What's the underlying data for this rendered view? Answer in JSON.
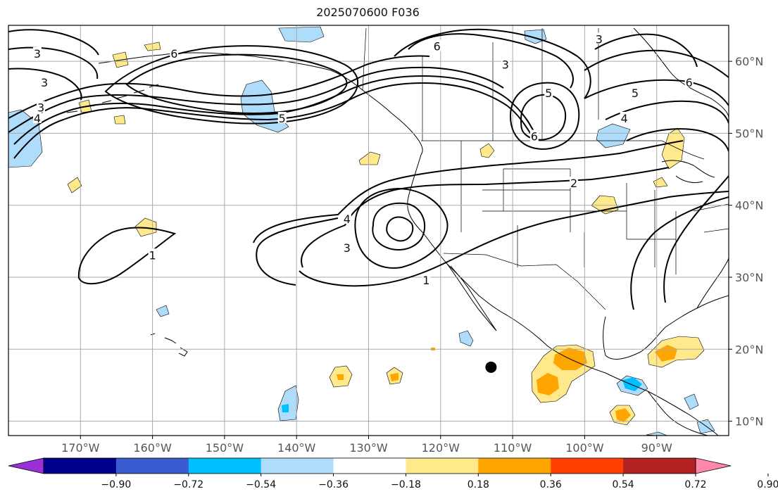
{
  "title": "2025070600 F036",
  "map": {
    "lon_range": [
      -180,
      -80
    ],
    "lat_range": [
      8,
      65
    ],
    "lon_ticks": [
      {
        "value": -170,
        "label": "170°W"
      },
      {
        "value": -160,
        "label": "160°W"
      },
      {
        "value": -150,
        "label": "150°W"
      },
      {
        "value": -140,
        "label": "140°W"
      },
      {
        "value": -130,
        "label": "130°W"
      },
      {
        "value": -120,
        "label": "120°W"
      },
      {
        "value": -110,
        "label": "110°W"
      },
      {
        "value": -100,
        "label": "100°W"
      },
      {
        "value": -90,
        "label": "90°W"
      }
    ],
    "lat_ticks": [
      {
        "value": 10,
        "label": "10°N"
      },
      {
        "value": 20,
        "label": "20°N"
      },
      {
        "value": 30,
        "label": "30°N"
      },
      {
        "value": 40,
        "label": "40°N"
      },
      {
        "value": 50,
        "label": "50°N"
      },
      {
        "value": 60,
        "label": "60°N"
      }
    ],
    "storm_marker": {
      "lon": -113,
      "lat": 17.5
    }
  },
  "contour_labels": [
    {
      "text": "3",
      "lon": -176,
      "lat": 61
    },
    {
      "text": "3",
      "lon": -175,
      "lat": 57
    },
    {
      "text": "3",
      "lon": -175.5,
      "lat": 53.5
    },
    {
      "text": "4",
      "lon": -176,
      "lat": 52
    },
    {
      "text": "6",
      "lon": -157,
      "lat": 61
    },
    {
      "text": "5",
      "lon": -142,
      "lat": 52
    },
    {
      "text": "6",
      "lon": -120.5,
      "lat": 62
    },
    {
      "text": "3",
      "lon": -111,
      "lat": 59.5
    },
    {
      "text": "5",
      "lon": -105,
      "lat": 55.5
    },
    {
      "text": "6",
      "lon": -107,
      "lat": 49.5
    },
    {
      "text": "3",
      "lon": -98,
      "lat": 63
    },
    {
      "text": "5",
      "lon": -93,
      "lat": 55.5
    },
    {
      "text": "6",
      "lon": -85.5,
      "lat": 57
    },
    {
      "text": "4",
      "lon": -94.5,
      "lat": 52
    },
    {
      "text": "2",
      "lon": -101.5,
      "lat": 43
    },
    {
      "text": "4",
      "lon": -133,
      "lat": 38
    },
    {
      "text": "3",
      "lon": -133,
      "lat": 34
    },
    {
      "text": "1",
      "lon": -122,
      "lat": 29.5
    },
    {
      "text": "1",
      "lon": -160,
      "lat": 33
    }
  ],
  "colorbar": {
    "colors": [
      "#9b30d9",
      "#00008b",
      "#3a5bcf",
      "#00bfff",
      "#aedcfa",
      "#ffffff",
      "#ffe98a",
      "#ffa500",
      "#ff4000",
      "#b22222",
      "#ff88aa"
    ],
    "ticks": [
      "−0.90",
      "−0.72",
      "−0.54",
      "−0.36",
      "−0.18",
      "0.18",
      "0.36",
      "0.54",
      "0.72",
      "0.90"
    ]
  },
  "colors": {
    "light_blue": "#aedcfa",
    "blue": "#00bfff",
    "light_yellow": "#ffe98a",
    "orange": "#ffa500",
    "contour": "#000000",
    "grid": "#aaaaaa"
  }
}
